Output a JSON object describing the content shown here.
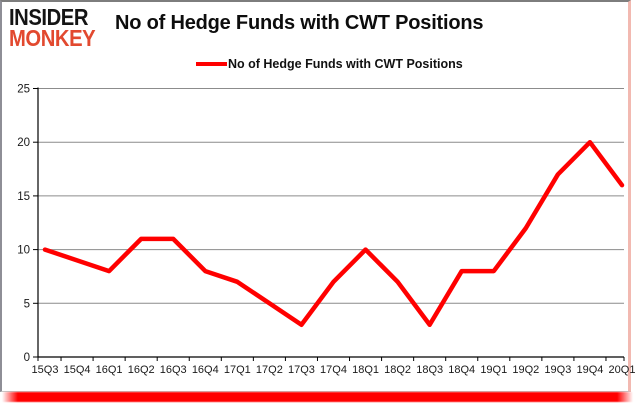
{
  "logo": {
    "line1": "INSIDER",
    "line2": "MONKEY"
  },
  "title": "No of Hedge Funds with CWT Positions",
  "legend": {
    "label": "No of Hedge Funds with CWT Positions",
    "color": "#ff0000"
  },
  "chart_data": {
    "type": "line",
    "title": "No of Hedge Funds with CWT Positions",
    "categories": [
      "15Q3",
      "15Q4",
      "16Q1",
      "16Q2",
      "16Q3",
      "16Q4",
      "17Q1",
      "17Q2",
      "17Q3",
      "17Q4",
      "18Q1",
      "18Q2",
      "18Q3",
      "18Q4",
      "19Q1",
      "19Q2",
      "19Q3",
      "19Q4",
      "20Q1"
    ],
    "series": [
      {
        "name": "No of Hedge Funds with CWT Positions",
        "color": "#ff0000",
        "values": [
          10,
          9,
          8,
          11,
          11,
          8,
          7,
          5,
          3,
          7,
          10,
          7,
          3,
          8,
          8,
          12,
          17,
          20,
          16
        ]
      }
    ],
    "xlabel": "",
    "ylabel": "",
    "ylim": [
      0,
      25
    ],
    "yticks": [
      0,
      5,
      10,
      15,
      20,
      25
    ],
    "grid": true,
    "legend_position": "top-center"
  },
  "colors": {
    "line_red": "#ff0000",
    "logo_red": "#e2492f",
    "gridline": "#8c8c8c",
    "axis": "#000000",
    "tick_label": "#1a1a1a",
    "accent_bar": "#ff0000"
  }
}
